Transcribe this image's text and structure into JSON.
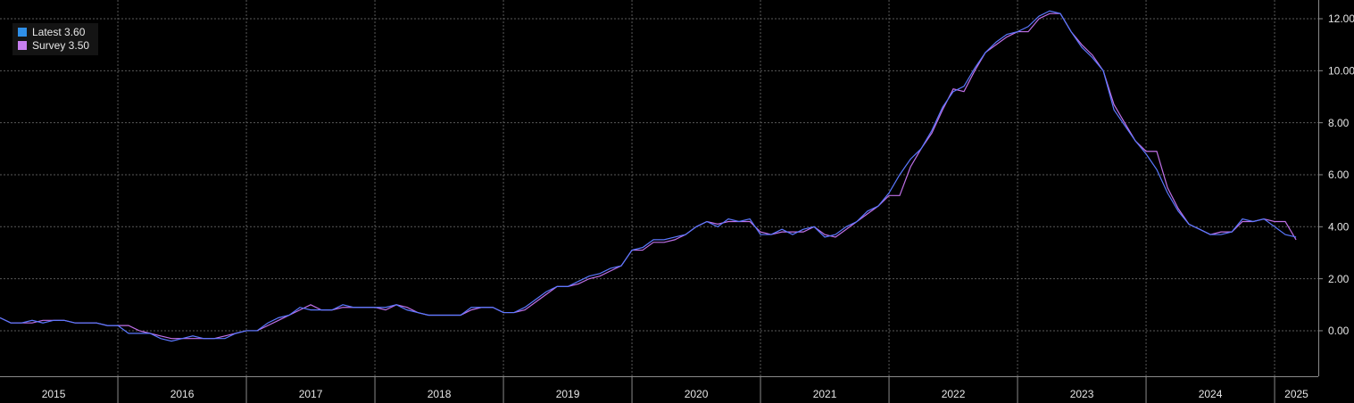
{
  "chart_data": {
    "type": "line",
    "x": [
      2015.083,
      2015.167,
      2015.25,
      2015.333,
      2015.417,
      2015.5,
      2015.583,
      2015.667,
      2015.75,
      2015.833,
      2015.917,
      2016,
      2016.083,
      2016.167,
      2016.25,
      2016.333,
      2016.417,
      2016.5,
      2016.583,
      2016.667,
      2016.75,
      2016.833,
      2016.917,
      2017,
      2017.083,
      2017.167,
      2017.25,
      2017.333,
      2017.417,
      2017.5,
      2017.583,
      2017.667,
      2017.75,
      2017.833,
      2017.917,
      2018,
      2018.083,
      2018.167,
      2018.25,
      2018.333,
      2018.417,
      2018.5,
      2018.583,
      2018.667,
      2018.75,
      2018.833,
      2018.917,
      2019,
      2019.083,
      2019.167,
      2019.25,
      2019.333,
      2019.417,
      2019.5,
      2019.583,
      2019.667,
      2019.75,
      2019.833,
      2019.917,
      2020,
      2020.083,
      2020.167,
      2020.25,
      2020.333,
      2020.417,
      2020.5,
      2020.583,
      2020.667,
      2020.75,
      2020.833,
      2020.917,
      2021,
      2021.083,
      2021.167,
      2021.25,
      2021.333,
      2021.417,
      2021.5,
      2021.583,
      2021.667,
      2021.75,
      2021.833,
      2021.917,
      2022,
      2022.083,
      2022.167,
      2022.25,
      2022.333,
      2022.417,
      2022.5,
      2022.583,
      2022.667,
      2022.75,
      2022.833,
      2022.917,
      2023,
      2023.083,
      2023.167,
      2023.25,
      2023.333,
      2023.417,
      2023.5,
      2023.583,
      2023.667,
      2023.75,
      2023.833,
      2023.917,
      2024,
      2024.083,
      2024.167,
      2024.25,
      2024.333,
      2024.417,
      2024.5,
      2024.583,
      2024.667,
      2024.75,
      2024.833,
      2024.917,
      2025,
      2025.083,
      2025.167
    ],
    "series": [
      {
        "name": "Latest 3.60",
        "color": "#5a78ff",
        "legend_color": "#2f8fe8",
        "values": [
          0.5,
          0.3,
          0.3,
          0.4,
          0.3,
          0.4,
          0.4,
          0.3,
          0.3,
          0.3,
          0.2,
          0.2,
          -0.1,
          -0.1,
          -0.1,
          -0.3,
          -0.4,
          -0.3,
          -0.2,
          -0.3,
          -0.3,
          -0.3,
          -0.1,
          0.0,
          0.0,
          0.3,
          0.5,
          0.6,
          0.9,
          0.8,
          0.8,
          0.8,
          1.0,
          0.9,
          0.9,
          0.9,
          0.9,
          1.0,
          0.8,
          0.7,
          0.6,
          0.6,
          0.6,
          0.6,
          0.9,
          0.9,
          0.9,
          0.7,
          0.7,
          0.9,
          1.2,
          1.5,
          1.7,
          1.7,
          1.9,
          2.1,
          2.2,
          2.4,
          2.5,
          3.1,
          3.2,
          3.5,
          3.5,
          3.6,
          3.7,
          4.0,
          4.2,
          4.0,
          4.3,
          4.2,
          4.3,
          3.7,
          3.7,
          3.9,
          3.7,
          3.9,
          4.0,
          3.6,
          3.7,
          4.0,
          4.2,
          4.6,
          4.8,
          5.3,
          6.0,
          6.6,
          7.0,
          7.7,
          8.6,
          9.2,
          9.4,
          10.1,
          10.7,
          11.1,
          11.4,
          11.5,
          11.7,
          12.1,
          12.3,
          12.2,
          11.5,
          10.9,
          10.5,
          10.0,
          8.5,
          7.9,
          7.3,
          6.8,
          6.2,
          5.3,
          4.6,
          4.1,
          3.9,
          3.7,
          3.7,
          3.8,
          4.3,
          4.2,
          4.3,
          4.0,
          3.7,
          3.6
        ]
      },
      {
        "name": "Survey 3.50",
        "color": "#c070e8",
        "legend_color": "#c77ef0",
        "values": [
          0.5,
          0.3,
          0.3,
          0.3,
          0.4,
          0.4,
          0.4,
          0.3,
          0.3,
          0.3,
          0.2,
          0.2,
          0.2,
          0.0,
          -0.1,
          -0.2,
          -0.3,
          -0.3,
          -0.3,
          -0.3,
          -0.3,
          -0.2,
          -0.1,
          0.0,
          0.0,
          0.2,
          0.4,
          0.6,
          0.8,
          1.0,
          0.8,
          0.8,
          0.9,
          0.9,
          0.9,
          0.9,
          0.8,
          1.0,
          0.9,
          0.7,
          0.6,
          0.6,
          0.6,
          0.6,
          0.8,
          0.9,
          0.9,
          0.7,
          0.7,
          0.8,
          1.1,
          1.4,
          1.7,
          1.7,
          1.8,
          2.0,
          2.1,
          2.3,
          2.5,
          3.1,
          3.1,
          3.4,
          3.4,
          3.5,
          3.7,
          4.0,
          4.2,
          4.1,
          4.2,
          4.2,
          4.2,
          3.8,
          3.7,
          3.8,
          3.8,
          3.8,
          4.0,
          3.7,
          3.6,
          3.9,
          4.2,
          4.5,
          4.8,
          5.2,
          5.2,
          6.3,
          7.0,
          7.6,
          8.5,
          9.3,
          9.2,
          10.0,
          10.7,
          11.0,
          11.3,
          11.5,
          11.5,
          12.0,
          12.2,
          12.2,
          11.5,
          11.0,
          10.6,
          10.0,
          8.7,
          8.0,
          7.3,
          6.9,
          6.9,
          5.5,
          4.7,
          4.1,
          3.9,
          3.7,
          3.8,
          3.8,
          4.2,
          4.2,
          4.3,
          4.2,
          4.2,
          3.5
        ]
      }
    ],
    "xlim": [
      2015.083,
      2025.34
    ],
    "xticks": [
      2015,
      2016,
      2017,
      2018,
      2019,
      2020,
      2021,
      2022,
      2023,
      2024,
      2025
    ],
    "ylim": [
      -1.75,
      12.72
    ],
    "yticks": [
      {
        "value": 0,
        "label": "0.00"
      },
      {
        "value": 2,
        "label": "2.00"
      },
      {
        "value": 4,
        "label": "4.00"
      },
      {
        "value": 6,
        "label": "6.00"
      },
      {
        "value": 8,
        "label": "8.00"
      },
      {
        "value": 10,
        "label": "10.00"
      },
      {
        "value": 12,
        "label": "12.00"
      }
    ],
    "grid": true,
    "legend": "upper-left"
  }
}
